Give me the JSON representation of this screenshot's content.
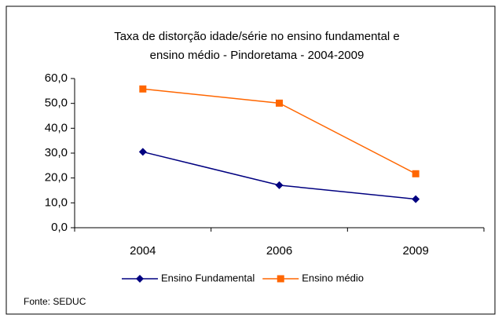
{
  "chart_data": {
    "type": "line",
    "title": [
      "Taxa de distorção idade/série no ensino fundamental e",
      "ensino médio - Pindoretama -  2004-2009"
    ],
    "categories": [
      "2004",
      "2006",
      "2009"
    ],
    "series": [
      {
        "name": "Ensino Fundamental",
        "color": "#000080",
        "marker": "diamond",
        "values": [
          30.5,
          17.1,
          11.5
        ]
      },
      {
        "name": "Ensino médio",
        "color": "#ff6600",
        "marker": "square",
        "values": [
          55.8,
          50.1,
          21.7
        ]
      }
    ],
    "ylim": [
      0,
      60
    ],
    "yticks": [
      {
        "value": 0,
        "label": "0,0"
      },
      {
        "value": 10,
        "label": "10,0"
      },
      {
        "value": 20,
        "label": "20,0"
      },
      {
        "value": 30,
        "label": "30,0"
      },
      {
        "value": 40,
        "label": "40,0"
      },
      {
        "value": 50,
        "label": "50,0"
      },
      {
        "value": 60,
        "label": "60,0"
      }
    ],
    "grid": false,
    "legend": "bottom",
    "note": "Fonte: SEDUC"
  }
}
